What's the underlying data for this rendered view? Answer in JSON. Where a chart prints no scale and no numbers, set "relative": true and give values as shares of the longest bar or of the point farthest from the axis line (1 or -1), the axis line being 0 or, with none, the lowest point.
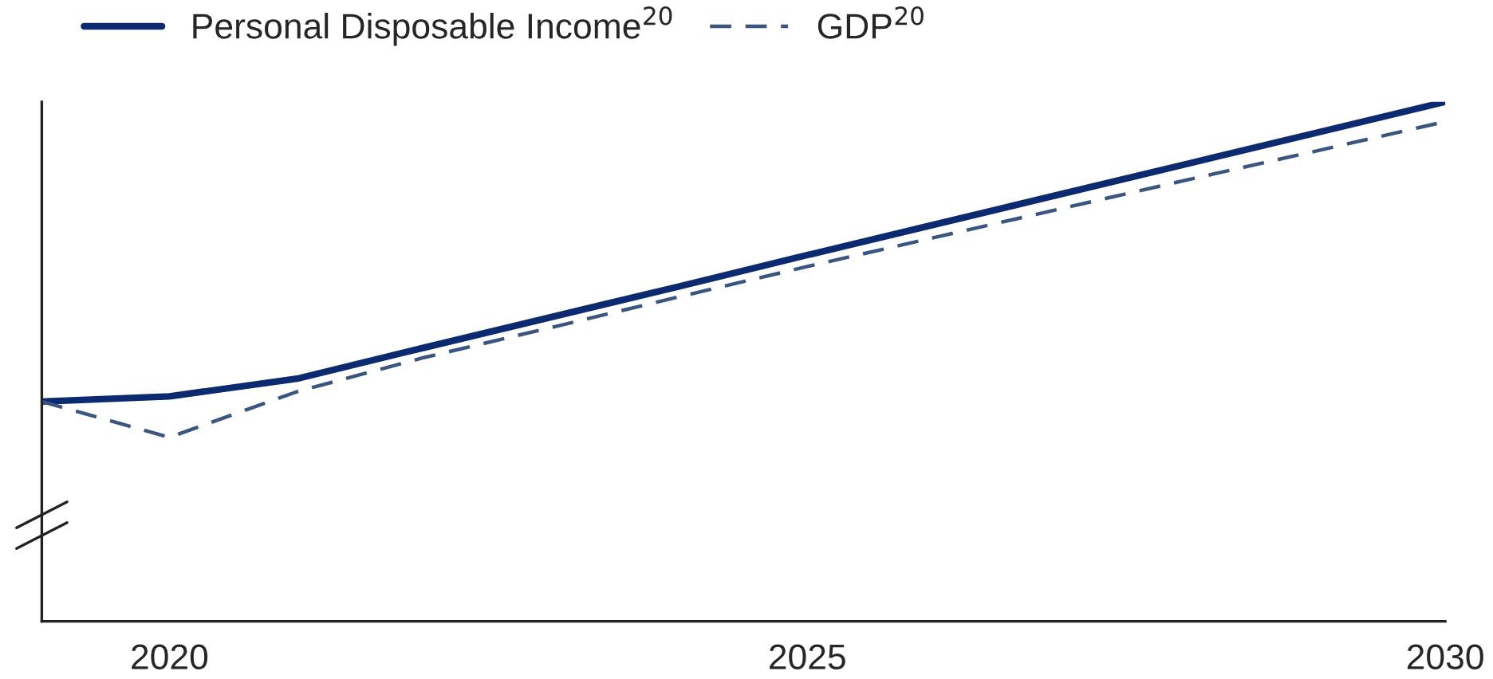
{
  "chart_data": {
    "type": "line",
    "relative": true,
    "x": [
      2019,
      2020,
      2021,
      2022,
      2023,
      2024,
      2025,
      2026,
      2027,
      2028,
      2029,
      2030
    ],
    "xlim": [
      2019,
      2030
    ],
    "xticks": [
      2020,
      2025,
      2030
    ],
    "legend": "top left",
    "grid": false,
    "series": [
      {
        "name": "Personal Disposable Income$^{20}$",
        "color": "#0b2a6f",
        "line_style": "solid",
        "values": [
          0.423,
          0.433,
          0.467,
          0.527,
          0.586,
          0.645,
          0.705,
          0.764,
          0.823,
          0.882,
          0.941,
          1
        ]
      },
      {
        "name": "GDP$^{20}$",
        "color": "#3a5580",
        "line_style": "dashed",
        "values": [
          0.423,
          0.354,
          0.442,
          0.508,
          0.566,
          0.625,
          0.683,
          0.739,
          0.795,
          0.851,
          0.906,
          0.962
        ]
      }
    ]
  }
}
